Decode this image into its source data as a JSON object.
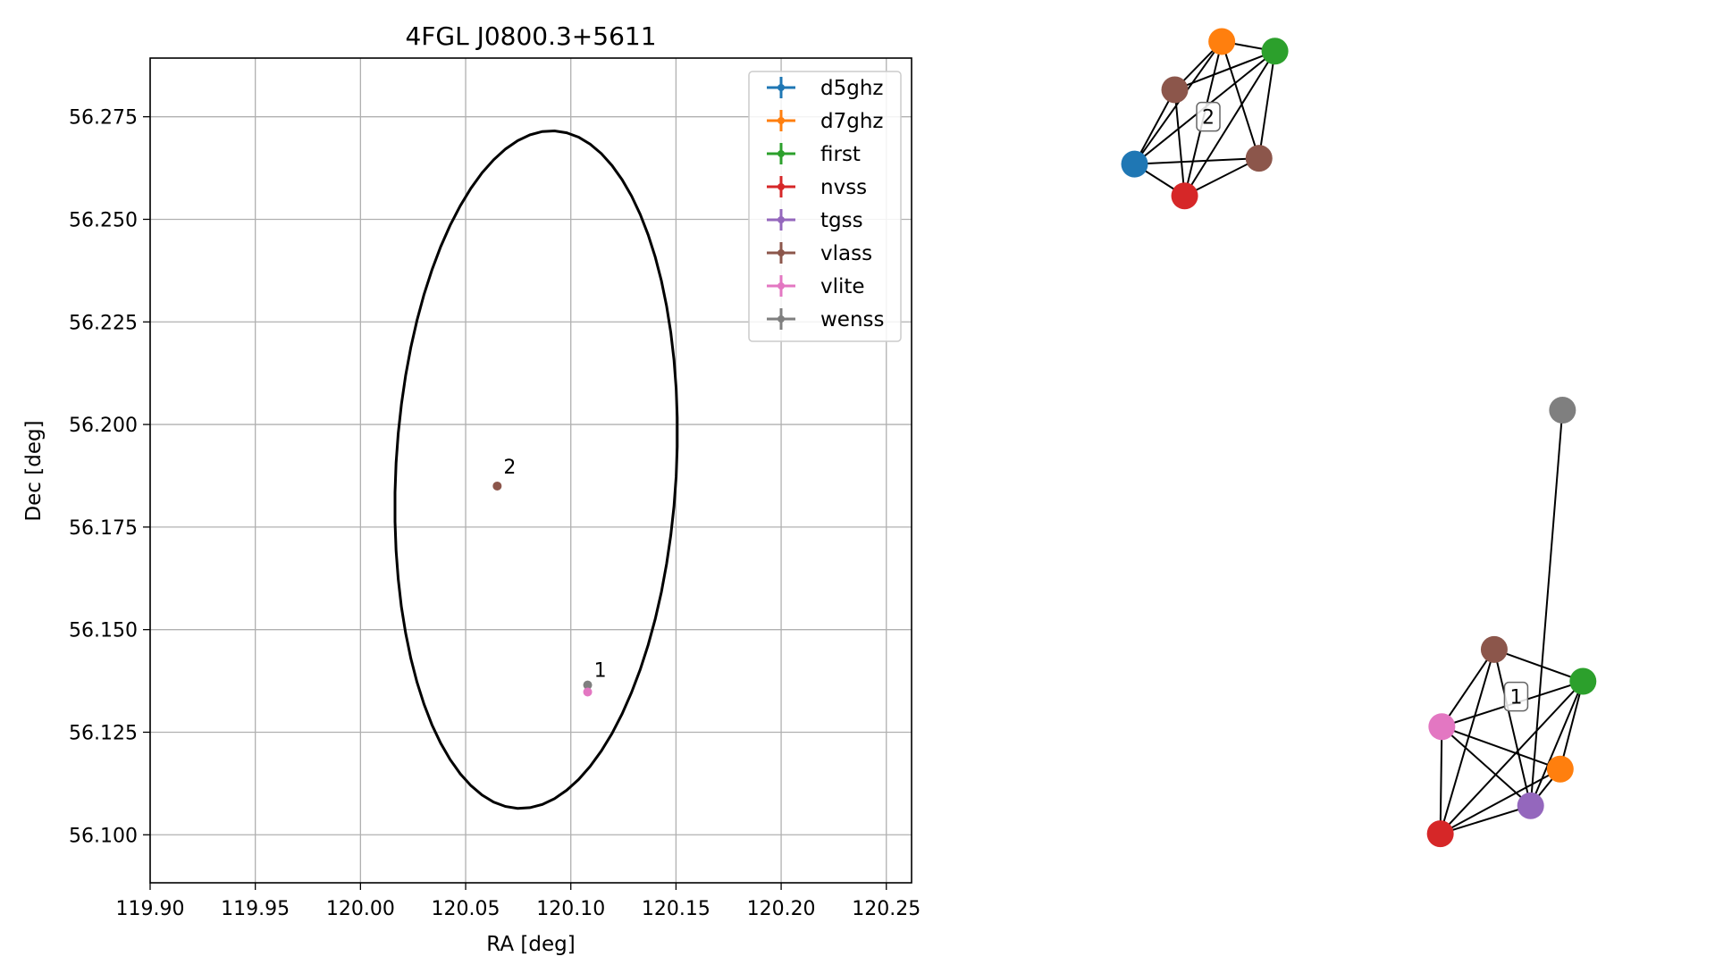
{
  "colors": {
    "d5ghz": "#1f77b4",
    "d7ghz": "#ff7f0e",
    "first": "#2ca02c",
    "nvss": "#d62728",
    "tgss": "#9467bd",
    "vlass": "#8c564b",
    "vlite": "#e377c2",
    "wenss": "#7f7f7f"
  },
  "chart_data": [
    {
      "type": "scatter",
      "title": "4FGL J0800.3+5611",
      "xlabel": "RA [deg]",
      "ylabel": "Dec [deg]",
      "xlim": [
        119.9,
        120.262
      ],
      "ylim": [
        56.0883,
        56.2893
      ],
      "xticks": [
        119.9,
        119.95,
        120.0,
        120.05,
        120.1,
        120.15,
        120.2,
        120.25
      ],
      "xtick_labels": [
        "119.90",
        "119.95",
        "120.00",
        "120.05",
        "120.10",
        "120.15",
        "120.20",
        "120.25"
      ],
      "yticks": [
        56.1,
        56.125,
        56.15,
        56.175,
        56.2,
        56.225,
        56.25,
        56.275
      ],
      "ytick_labels": [
        "56.100",
        "56.125",
        "56.150",
        "56.175",
        "56.200",
        "56.225",
        "56.250",
        "56.275"
      ],
      "grid": true,
      "legend_position": "top-right",
      "legend": [
        "d5ghz",
        "d7ghz",
        "first",
        "nvss",
        "tgss",
        "vlass",
        "vlite",
        "wenss"
      ],
      "ellipse": {
        "center": [
          120.0835,
          56.189
        ],
        "semi_axes": [
          0.0835,
          0.066
        ],
        "rotation_deg": 76
      },
      "series": [
        {
          "name": "vlass",
          "x": [
            120.065
          ],
          "y": [
            56.185
          ]
        },
        {
          "name": "wenss",
          "x": [
            120.108
          ],
          "y": [
            56.1365
          ]
        },
        {
          "name": "vlite",
          "x": [
            120.108
          ],
          "y": [
            56.1348
          ]
        }
      ],
      "annotations": [
        {
          "text": "2",
          "x": 120.068,
          "y": 56.188
        },
        {
          "text": "1",
          "x": 120.111,
          "y": 56.1385
        }
      ]
    },
    {
      "type": "network",
      "clusters": [
        {
          "label": "2",
          "nodes": [
            {
              "survey": "d7ghz",
              "x": 0.35,
              "y": 0.957
            },
            {
              "survey": "first",
              "x": 0.42,
              "y": 0.947
            },
            {
              "survey": "vlass",
              "x": 0.288,
              "y": 0.907
            },
            {
              "survey": "d5ghz",
              "x": 0.235,
              "y": 0.83
            },
            {
              "survey": "nvss",
              "x": 0.301,
              "y": 0.797
            },
            {
              "survey": "vlass",
              "x": 0.399,
              "y": 0.836
            }
          ],
          "edges": [
            [
              0,
              1
            ],
            [
              0,
              2
            ],
            [
              0,
              3
            ],
            [
              0,
              4
            ],
            [
              0,
              5
            ],
            [
              1,
              2
            ],
            [
              1,
              3
            ],
            [
              1,
              4
            ],
            [
              1,
              5
            ],
            [
              2,
              3
            ],
            [
              2,
              4
            ],
            [
              3,
              4
            ],
            [
              3,
              5
            ],
            [
              4,
              5
            ]
          ]
        },
        {
          "label": "1",
          "nodes": [
            {
              "survey": "wenss",
              "x": 0.799,
              "y": 0.575
            },
            {
              "survey": "vlass",
              "x": 0.709,
              "y": 0.327
            },
            {
              "survey": "first",
              "x": 0.826,
              "y": 0.294
            },
            {
              "survey": "vlite",
              "x": 0.64,
              "y": 0.247
            },
            {
              "survey": "d7ghz",
              "x": 0.796,
              "y": 0.203
            },
            {
              "survey": "tgss",
              "x": 0.757,
              "y": 0.165
            },
            {
              "survey": "nvss",
              "x": 0.638,
              "y": 0.136
            }
          ],
          "edges": [
            [
              0,
              5
            ],
            [
              1,
              2
            ],
            [
              1,
              3
            ],
            [
              1,
              5
            ],
            [
              1,
              6
            ],
            [
              2,
              3
            ],
            [
              2,
              4
            ],
            [
              2,
              5
            ],
            [
              2,
              6
            ],
            [
              3,
              4
            ],
            [
              3,
              5
            ],
            [
              3,
              6
            ],
            [
              4,
              5
            ],
            [
              4,
              6
            ],
            [
              5,
              6
            ]
          ]
        }
      ]
    }
  ]
}
